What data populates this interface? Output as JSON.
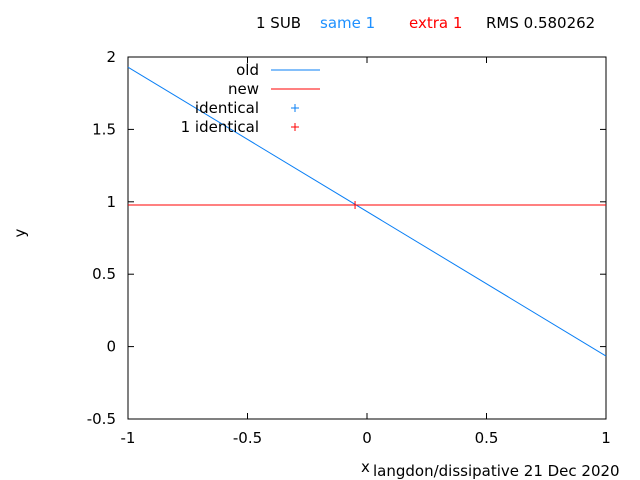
{
  "header": {
    "sub": "1 SUB",
    "same": "same 1",
    "extra": "extra 1",
    "rms": "RMS 0.580262"
  },
  "footer": "langdon/dissipative 21 Dec 2020",
  "colors": {
    "old": "#0a7ff5",
    "new": "#ff0000",
    "same": "#1e90ff",
    "extra": "#ff0000",
    "axis": "#000000"
  },
  "chart_data": {
    "type": "line",
    "xlabel": "x",
    "ylabel": "y",
    "xlim": [
      -1,
      1
    ],
    "ylim": [
      -0.5,
      2
    ],
    "xticks": [
      -1,
      -0.5,
      0,
      0.5,
      1
    ],
    "xtick_labels": [
      "-1",
      "-0.5",
      "0",
      "0.5",
      "1"
    ],
    "yticks": [
      -0.5,
      0,
      0.5,
      1,
      1.5,
      2
    ],
    "ytick_labels": [
      "-0.5",
      "0",
      "0.5",
      "1",
      "1.5",
      "2"
    ],
    "grid": false,
    "legend_position": "top-left",
    "series": [
      {
        "name": "old",
        "x": [
          -1,
          1
        ],
        "y": [
          1.93,
          -0.065
        ],
        "color": "#0a7ff5"
      },
      {
        "name": "new",
        "x": [
          -1,
          1
        ],
        "y": [
          0.978,
          0.978
        ],
        "color": "#ff0000"
      }
    ],
    "points": [
      {
        "name": "identical",
        "x": [],
        "y": [],
        "color": "#0a7ff5"
      },
      {
        "name": "1 identical",
        "x": [
          -0.05
        ],
        "y": [
          0.978
        ],
        "color": "#ff0000"
      }
    ]
  }
}
